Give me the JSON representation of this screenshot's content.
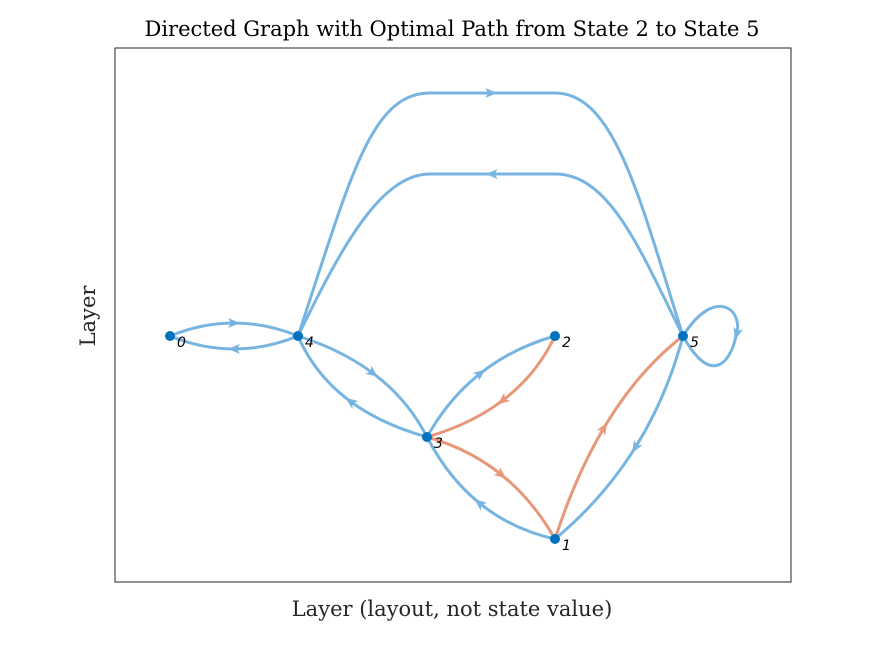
{
  "title": "Directed Graph with Optimal Path from State 2 to State 5",
  "xlabel": "Layer (layout, not state value)",
  "ylabel": "Layer",
  "nodes": [
    {
      "label": "0"
    },
    {
      "label": "1"
    },
    {
      "label": "2"
    },
    {
      "label": "3"
    },
    {
      "label": "4"
    },
    {
      "label": "5"
    }
  ],
  "edges": [
    {
      "from": 0,
      "to": 4,
      "optimal": false
    },
    {
      "from": 4,
      "to": 0,
      "optimal": false
    },
    {
      "from": 4,
      "to": 5,
      "optimal": false
    },
    {
      "from": 5,
      "to": 4,
      "optimal": false
    },
    {
      "from": 4,
      "to": 3,
      "optimal": false
    },
    {
      "from": 3,
      "to": 4,
      "optimal": false
    },
    {
      "from": 3,
      "to": 2,
      "optimal": false
    },
    {
      "from": 2,
      "to": 3,
      "optimal": true
    },
    {
      "from": 3,
      "to": 1,
      "optimal": true
    },
    {
      "from": 1,
      "to": 3,
      "optimal": false
    },
    {
      "from": 1,
      "to": 5,
      "optimal": true
    },
    {
      "from": 5,
      "to": 1,
      "optimal": false
    },
    {
      "from": 5,
      "to": 5,
      "optimal": false
    }
  ],
  "edge_color": "#77b5e0",
  "optimal_color": "#e8987a",
  "node_color": "#0072bd"
}
